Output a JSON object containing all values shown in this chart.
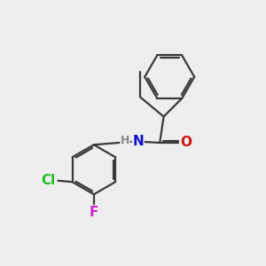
{
  "background_color": "#eeeeee",
  "bond_color": "#3a3a3a",
  "bond_width": 1.6,
  "dbo": 0.08,
  "atom_colors": {
    "N": "#1010cc",
    "O": "#cc1010",
    "Cl": "#22bb22",
    "F": "#cc22cc",
    "H": "#888888"
  },
  "font_size_main": 11,
  "font_size_H": 9
}
